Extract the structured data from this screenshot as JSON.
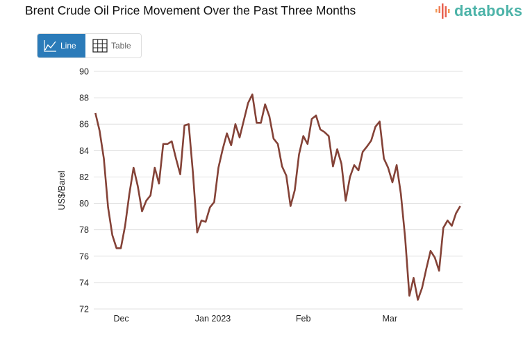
{
  "header": {
    "title": "Brent Crude Oil Price Movement Over the Past Three Months",
    "logo": "databoks"
  },
  "view_toggle": {
    "line_label": "Line",
    "table_label": "Table",
    "active": "Line"
  },
  "colors": {
    "line": "#844237",
    "accent": "#2b7bb9",
    "logo": "#4cb3a8"
  },
  "chart_data": {
    "type": "line",
    "title": "Brent Crude Oil Price Movement Over the Past Three Months",
    "xlabel": "",
    "ylabel": "US$/Barel",
    "ylim": [
      72,
      90
    ],
    "yticks": [
      72,
      74,
      76,
      78,
      80,
      82,
      84,
      86,
      88,
      90
    ],
    "grid": true,
    "xticks": [
      {
        "label": "Dec",
        "index": 6.1
      },
      {
        "label": "Jan 2023",
        "index": 27.7
      },
      {
        "label": "Feb",
        "index": 49.0
      },
      {
        "label": "Mar",
        "index": 69.4
      }
    ],
    "series": [
      {
        "name": "Brent",
        "values": [
          86.85,
          85.5,
          83.4,
          79.7,
          77.6,
          76.6,
          76.6,
          78.3,
          80.7,
          82.7,
          81.3,
          79.4,
          80.2,
          80.6,
          82.7,
          81.5,
          84.5,
          84.5,
          84.7,
          83.4,
          82.2,
          85.9,
          86.0,
          82.3,
          77.8,
          78.7,
          78.6,
          79.7,
          80.1,
          82.7,
          84.1,
          85.3,
          84.4,
          86.0,
          85.0,
          86.3,
          87.6,
          88.25,
          86.1,
          86.1,
          87.5,
          86.6,
          84.9,
          84.5,
          82.8,
          82.1,
          79.8,
          81.0,
          83.7,
          85.1,
          84.5,
          86.4,
          86.65,
          85.6,
          85.4,
          85.1,
          82.8,
          84.1,
          83.0,
          80.2,
          82.0,
          82.9,
          82.5,
          83.9,
          84.3,
          84.75,
          85.8,
          86.2,
          83.4,
          82.7,
          81.6,
          82.9,
          80.7,
          77.4,
          73.0,
          74.35,
          72.7,
          73.6,
          75.05,
          76.4,
          75.9,
          74.9,
          78.15,
          78.7,
          78.3,
          79.25,
          79.8
        ]
      }
    ]
  }
}
